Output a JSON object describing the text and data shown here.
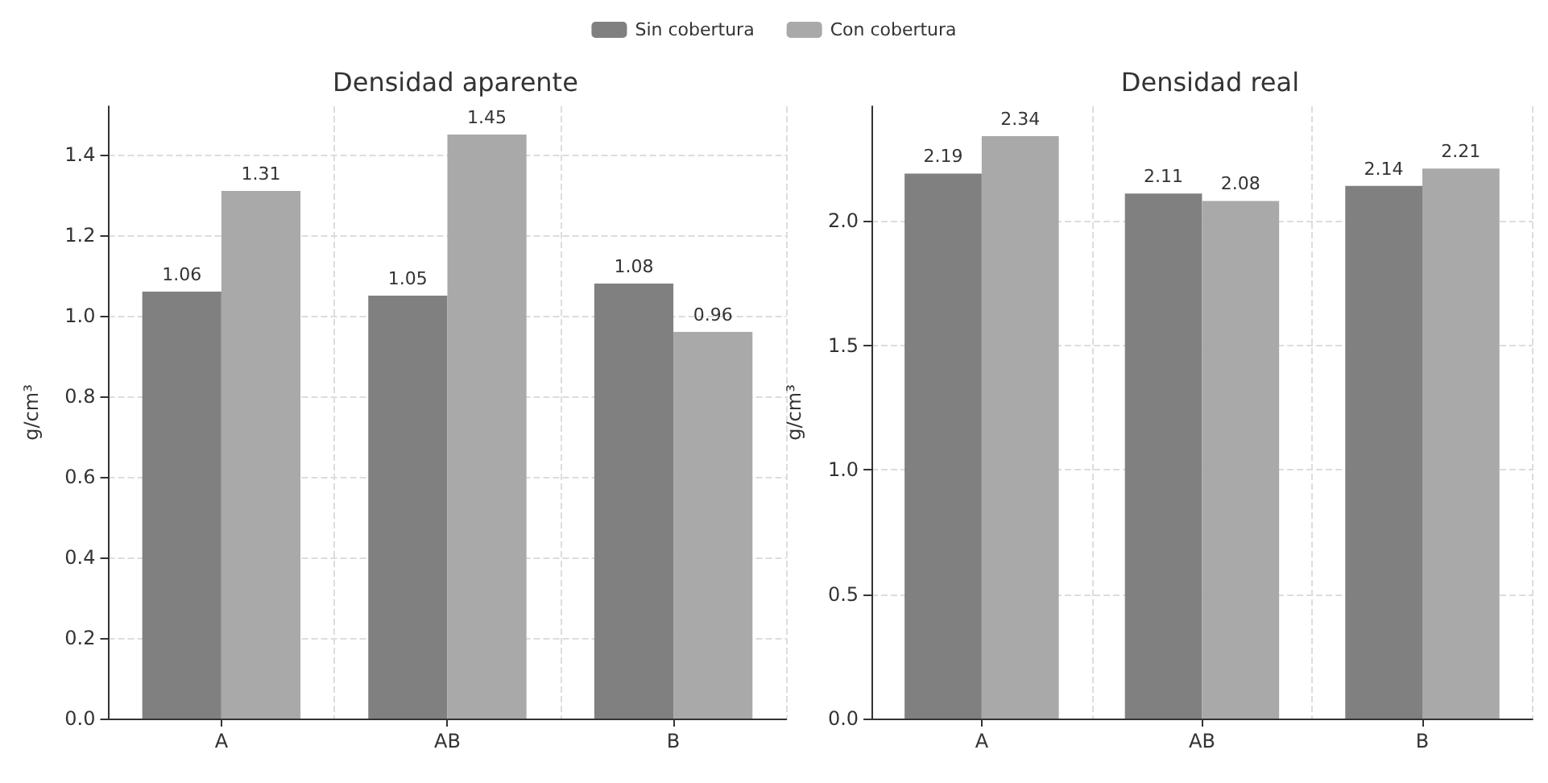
{
  "chart_data": [
    {
      "type": "bar",
      "title": "Densidad aparente",
      "ylabel": "g/cm³",
      "categories": [
        "A",
        "AB",
        "B"
      ],
      "series": [
        {
          "name": "Sin cobertura",
          "color": "#808080",
          "values": [
            1.06,
            1.05,
            1.08
          ]
        },
        {
          "name": "Con cobertura",
          "color": "#a9a9a9",
          "values": [
            1.31,
            1.45,
            0.96
          ]
        }
      ],
      "ylim": [
        0,
        1.52
      ],
      "yticks": [
        {
          "value": 0,
          "label": "0.0"
        },
        {
          "value": 0.2,
          "label": "0.2"
        },
        {
          "value": 0.4,
          "label": "0.4"
        },
        {
          "value": 0.6,
          "label": "0.6"
        },
        {
          "value": 0.8,
          "label": "0.8"
        },
        {
          "value": 1,
          "label": "1.0"
        },
        {
          "value": 1.2,
          "label": "1.2"
        },
        {
          "value": 1.4,
          "label": "1.4"
        }
      ],
      "data_labels": true,
      "grid": true,
      "legend": "top"
    },
    {
      "type": "bar",
      "title": "Densidad real",
      "ylabel": "g/cm³",
      "categories": [
        "A",
        "AB",
        "B"
      ],
      "series": [
        {
          "name": "Sin cobertura",
          "color": "#808080",
          "values": [
            2.19,
            2.11,
            2.14
          ]
        },
        {
          "name": "Con cobertura",
          "color": "#a9a9a9",
          "values": [
            2.34,
            2.08,
            2.21
          ]
        }
      ],
      "ylim": [
        0,
        2.46
      ],
      "yticks": [
        {
          "value": 0,
          "label": "0.0"
        },
        {
          "value": 0.5,
          "label": "0.5"
        },
        {
          "value": 1,
          "label": "1.0"
        },
        {
          "value": 1.5,
          "label": "1.5"
        },
        {
          "value": 2,
          "label": "2.0"
        }
      ],
      "data_labels": true,
      "grid": true,
      "legend": "top"
    }
  ]
}
